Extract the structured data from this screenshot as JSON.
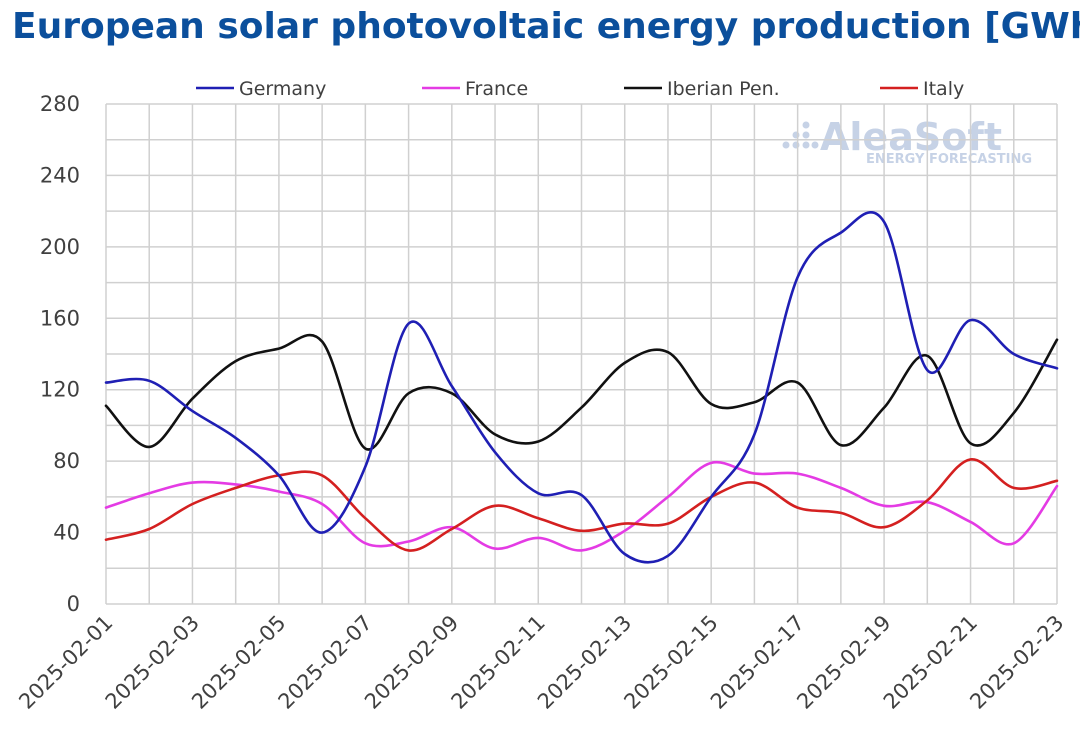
{
  "header": {
    "title": "European solar photovoltaic energy production [GWh]"
  },
  "watermark": {
    "brand": "AleaSoft",
    "tagline": "ENERGY FORECASTING"
  },
  "chart_data": {
    "type": "line",
    "title": "European solar photovoltaic energy production [GWh]",
    "xlabel": "",
    "ylabel": "",
    "ylim": [
      0,
      280
    ],
    "yticks": [
      0,
      40,
      80,
      120,
      160,
      200,
      240,
      280
    ],
    "grid": true,
    "legend_position": "top",
    "x": [
      "2025-02-01",
      "2025-02-02",
      "2025-02-03",
      "2025-02-04",
      "2025-02-05",
      "2025-02-06",
      "2025-02-07",
      "2025-02-08",
      "2025-02-09",
      "2025-02-10",
      "2025-02-11",
      "2025-02-12",
      "2025-02-13",
      "2025-02-14",
      "2025-02-15",
      "2025-02-16",
      "2025-02-17",
      "2025-02-18",
      "2025-02-19",
      "2025-02-20",
      "2025-02-21",
      "2025-02-22",
      "2025-02-23"
    ],
    "x_tick_labels": [
      "2025-02-01",
      "2025-02-03",
      "2025-02-05",
      "2025-02-07",
      "2025-02-09",
      "2025-02-11",
      "2025-02-13",
      "2025-02-15",
      "2025-02-17",
      "2025-02-19",
      "2025-02-21",
      "2025-02-23"
    ],
    "series": [
      {
        "name": "Germany",
        "color": "#1f1fb4",
        "values": [
          124,
          125,
          108,
          93,
          72,
          40,
          77,
          157,
          122,
          85,
          62,
          61,
          28,
          27,
          60,
          95,
          183,
          208,
          214,
          131,
          159,
          140,
          132
        ]
      },
      {
        "name": "France",
        "color": "#e43be4",
        "values": [
          54,
          62,
          68,
          67,
          63,
          56,
          34,
          35,
          43,
          31,
          37,
          30,
          41,
          60,
          79,
          73,
          73,
          65,
          55,
          57,
          46,
          34,
          66
        ]
      },
      {
        "name": "Iberian Pen.",
        "color": "#111111",
        "values": [
          111,
          88,
          115,
          136,
          143,
          147,
          87,
          118,
          118,
          95,
          91,
          110,
          135,
          141,
          112,
          113,
          124,
          89,
          110,
          139,
          90,
          107,
          148
        ]
      },
      {
        "name": "Italy",
        "color": "#d42020",
        "values": [
          36,
          42,
          56,
          65,
          72,
          72,
          48,
          30,
          42,
          55,
          48,
          41,
          45,
          45,
          60,
          68,
          54,
          51,
          43,
          58,
          81,
          65,
          69
        ]
      }
    ]
  }
}
